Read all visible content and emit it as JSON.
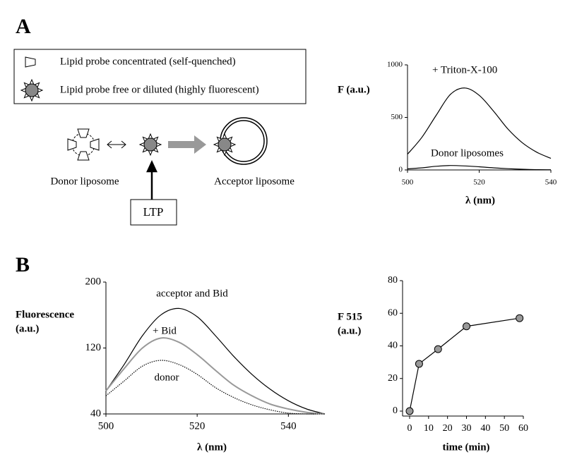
{
  "panel_labels": [
    "A",
    "B"
  ],
  "legend": [
    "Lipid probe concentrated (self-quenched)",
    "Lipid probe free or diluted (highly fluorescent)"
  ],
  "diagram": {
    "donor": "Donor liposome",
    "acceptor": "Acceptor liposome",
    "ltp": "LTP"
  },
  "chart_data": [
    {
      "type": "line",
      "ylabel": [
        "F (a.u.)"
      ],
      "xlabel": "λ (nm)",
      "annotations": [
        "+ Triton-X-100",
        "Donor liposomes"
      ],
      "x": [
        500,
        504,
        508,
        512,
        516,
        520,
        524,
        528,
        532,
        536,
        540
      ],
      "series": [
        {
          "name": "+ Triton-X-100",
          "color": "#000000",
          "values": [
            150,
            310,
            520,
            720,
            780,
            710,
            560,
            390,
            260,
            170,
            110
          ]
        },
        {
          "name": "Donor liposomes",
          "color": "#000000",
          "values": [
            10,
            20,
            35,
            42,
            38,
            30,
            20,
            12,
            7,
            3,
            2
          ]
        }
      ],
      "xlim": [
        500,
        540
      ],
      "ylim": [
        0,
        1000
      ],
      "xticks": [
        500,
        520,
        540
      ],
      "yticks": [
        0,
        500,
        1000
      ]
    },
    {
      "type": "line",
      "ylabel": [
        "Fluorescence",
        "(a.u.)"
      ],
      "xlabel": "λ (nm)",
      "annotations": [
        "acceptor and Bid",
        "+ Bid",
        "donor"
      ],
      "x": [
        500,
        504,
        508,
        512,
        516,
        520,
        524,
        528,
        532,
        536,
        540,
        544,
        548
      ],
      "series": [
        {
          "name": "acceptor and Bid",
          "color": "#000000",
          "linestyle": "solid",
          "values": [
            68,
            100,
            135,
            160,
            168,
            158,
            135,
            110,
            88,
            70,
            56,
            46,
            40
          ]
        },
        {
          "name": "+ Bid",
          "color": "#999999",
          "linestyle": "solid",
          "values": [
            68,
            95,
            120,
            132,
            127,
            112,
            93,
            75,
            62,
            52,
            46,
            42,
            40
          ]
        },
        {
          "name": "donor",
          "color": "#000000",
          "linestyle": "dotted",
          "values": [
            62,
            80,
            98,
            105,
            100,
            88,
            72,
            60,
            51,
            45,
            41,
            40,
            40
          ]
        }
      ],
      "xlim": [
        500,
        548
      ],
      "ylim": [
        40,
        200
      ],
      "xticks": [
        500,
        520,
        540
      ],
      "yticks": [
        40,
        120,
        200
      ]
    },
    {
      "type": "line-marker",
      "ylabel": [
        "F 515",
        "(a.u.)"
      ],
      "xlabel": "time (min)",
      "x": [
        0,
        5,
        15,
        30,
        58
      ],
      "series": [
        {
          "name": "F 515",
          "color": "#000000",
          "marker_color": "#999999",
          "values": [
            0,
            29,
            38,
            52,
            57
          ]
        }
      ],
      "xlim": [
        0,
        60
      ],
      "ylim": [
        0,
        80
      ],
      "xticks": [
        0,
        10,
        20,
        30,
        40,
        50,
        60
      ],
      "yticks": [
        0,
        20,
        40,
        60,
        80
      ]
    }
  ]
}
